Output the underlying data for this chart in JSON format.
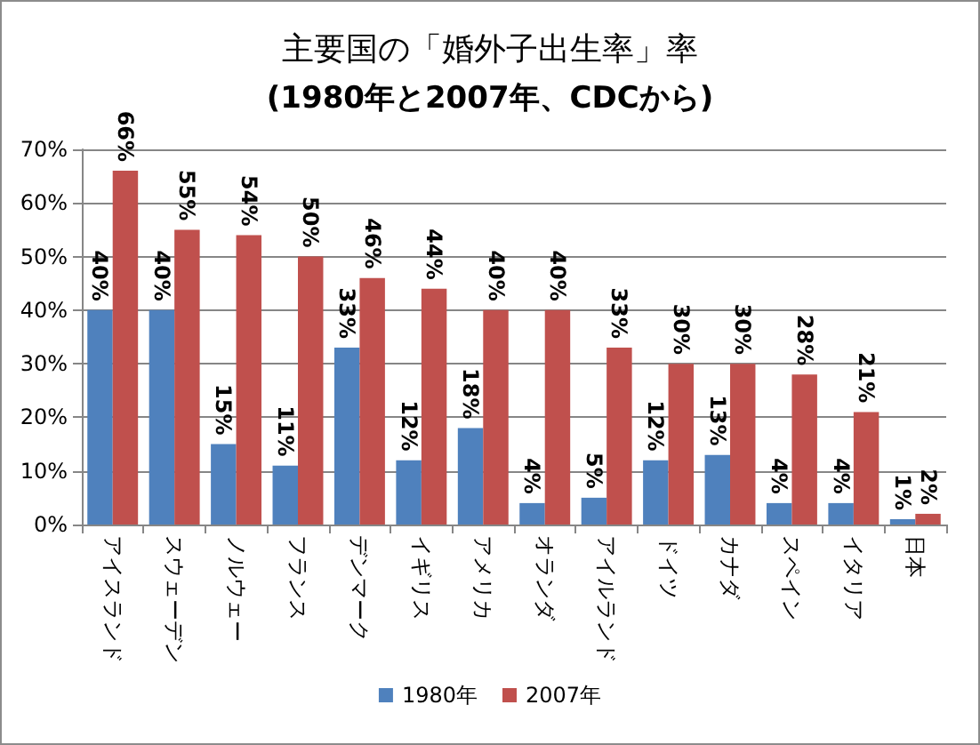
{
  "chart_data": {
    "type": "bar",
    "title": "主要国の「婚外子出生率」率",
    "subtitle": "(1980年と2007年、CDCから)",
    "categories": [
      "アイスランド",
      "スウェーデン",
      "ノルウェー",
      "フランス",
      "デンマーク",
      "イギリス",
      "アメリカ",
      "オランダ",
      "アイルランド",
      "ドイツ",
      "カナダ",
      "スペイン",
      "イタリア",
      "日本"
    ],
    "series": [
      {
        "name": "1980年",
        "color": "#4f81bd",
        "values": [
          40,
          40,
          15,
          11,
          33,
          12,
          18,
          4,
          5,
          12,
          13,
          4,
          4,
          1
        ],
        "value_labels": [
          "40%",
          "40%",
          "15%",
          "11%",
          "33%",
          "12%",
          "18%",
          "4%",
          "5%",
          "12%",
          "13%",
          "4%",
          "4%",
          "1%"
        ]
      },
      {
        "name": "2007年",
        "color": "#c0504d",
        "values": [
          66,
          55,
          54,
          50,
          46,
          44,
          40,
          40,
          33,
          30,
          30,
          28,
          21,
          2
        ],
        "value_labels": [
          "66%",
          "55%",
          "54%",
          "50%",
          "46%",
          "44%",
          "40%",
          "40%",
          "33%",
          "30%",
          "30%",
          "28%",
          "21%",
          "2%"
        ]
      }
    ],
    "ylim": [
      0,
      70
    ],
    "yticks": [
      {
        "value": 0,
        "label": "0%"
      },
      {
        "value": 10,
        "label": "10%"
      },
      {
        "value": 20,
        "label": "20%"
      },
      {
        "value": 30,
        "label": "30%"
      },
      {
        "value": 40,
        "label": "40%"
      },
      {
        "value": 50,
        "label": "50%"
      },
      {
        "value": 60,
        "label": "60%"
      },
      {
        "value": 70,
        "label": "70%"
      }
    ],
    "grid": "y",
    "legend": "bottom"
  }
}
